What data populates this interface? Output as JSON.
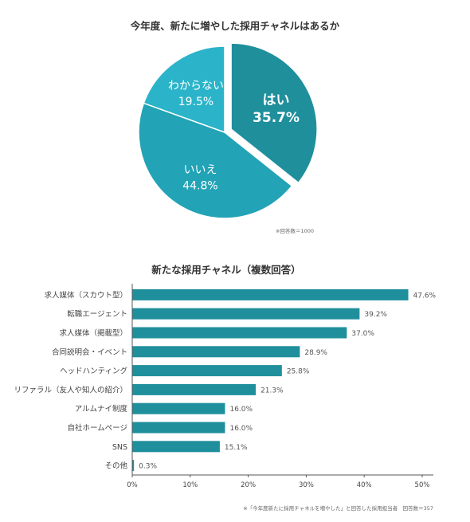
{
  "colors": {
    "pie_yes": "#1f8f9c",
    "pie_no": "#22a3b6",
    "pie_unknown": "#2bb4c9",
    "bar": "#1f8f9c",
    "axis": "#555555"
  },
  "chart_data": [
    {
      "type": "pie",
      "title": "今年度、新たに増やした採用チャネルはあるか",
      "slices": [
        {
          "name": "はい",
          "value": 35.7,
          "value_label": "35.7%",
          "exploded": true
        },
        {
          "name": "いいえ",
          "value": 44.8,
          "value_label": "44.8%"
        },
        {
          "name": "わからない",
          "value": 19.5,
          "value_label": "19.5%"
        }
      ],
      "note": "※回答数＝1000"
    },
    {
      "type": "bar",
      "orientation": "horizontal",
      "title": "新たな採用チャネル（複数回答）",
      "categories": [
        "求人媒体（スカウト型）",
        "転職エージェント",
        "求人媒体（掲載型）",
        "合同説明会・イベント",
        "ヘッドハンティング",
        "リファラル（友人や知人の紹介）",
        "アルムナイ制度",
        "自社ホームページ",
        "SNS",
        "その他"
      ],
      "values": [
        47.6,
        39.2,
        37.0,
        28.9,
        25.8,
        21.3,
        16.0,
        16.0,
        15.1,
        0.3
      ],
      "value_labels": [
        "47.6%",
        "39.2%",
        "37.0%",
        "28.9%",
        "25.8%",
        "21.3%",
        "16.0%",
        "16.0%",
        "15.1%",
        "0.3%"
      ],
      "xlim": [
        0,
        50
      ],
      "xticks": [
        0,
        10,
        20,
        30,
        40,
        50
      ],
      "xtick_labels": [
        "0%",
        "10%",
        "20%",
        "30%",
        "40%",
        "50%"
      ],
      "note": "※「今年度新たに採用チャネルを増やした」と回答した採用担当者　回答数＝357"
    }
  ]
}
